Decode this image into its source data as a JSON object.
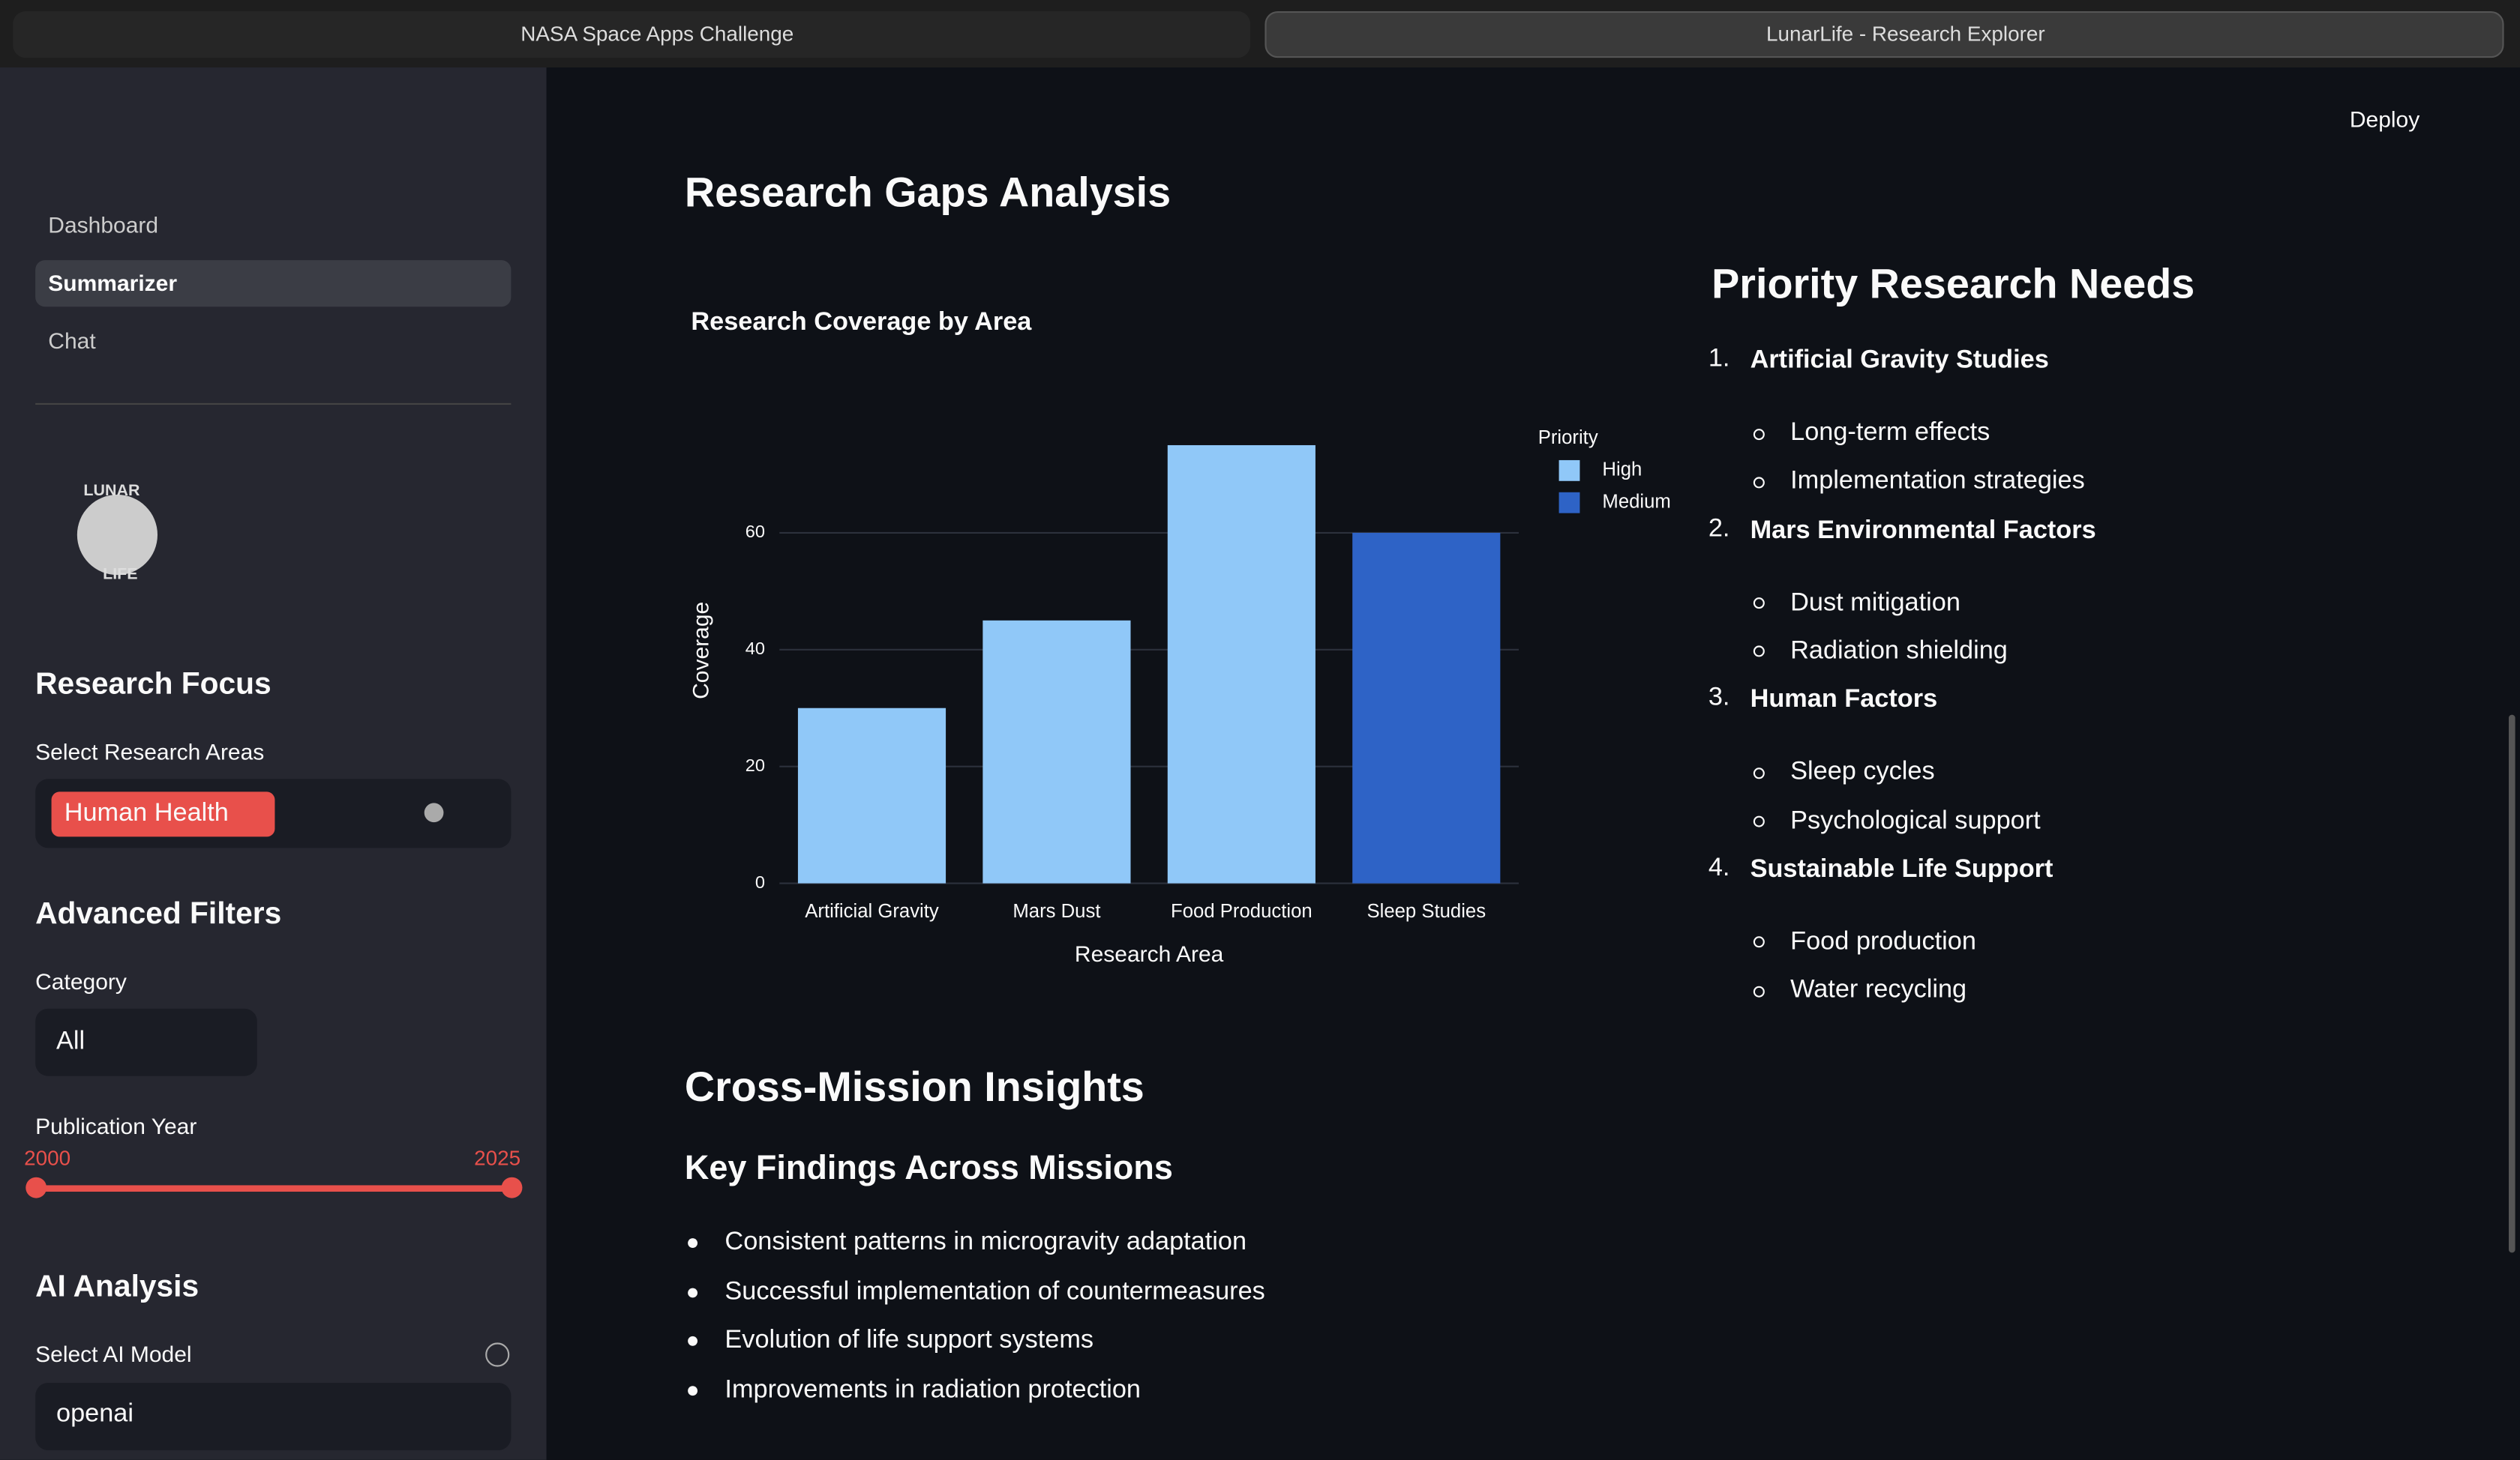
{
  "tabs": [
    "NASA Space Apps Challenge",
    "LunarLife - Research Explorer"
  ],
  "sidebar": {
    "nav": [
      "Dashboard",
      "Summarizer",
      "Chat"
    ],
    "logo": [
      "LUNAR",
      "LIFE"
    ],
    "research_focus": {
      "heading": "Research Focus",
      "label": "Select Research Areas",
      "selected": [
        "Human Health"
      ]
    },
    "advanced_filters": {
      "heading": "Advanced Filters",
      "category_label": "Category",
      "category_value": "All",
      "year_label": "Publication Year",
      "year_range": [
        2000,
        2025
      ]
    },
    "ai_analysis": {
      "heading": "AI Analysis",
      "model_label": "Select AI Model",
      "model_value": "openai"
    }
  },
  "header": {
    "deploy": "Deploy"
  },
  "main": {
    "title": "Research Gaps Analysis",
    "priority": {
      "heading": "Priority Research Needs",
      "items": [
        {
          "title": "Artificial Gravity Studies",
          "points": [
            "Long-term effects",
            "Implementation strategies"
          ]
        },
        {
          "title": "Mars Environmental Factors",
          "points": [
            "Dust mitigation",
            "Radiation shielding"
          ]
        },
        {
          "title": "Human Factors",
          "points": [
            "Sleep cycles",
            "Psychological support"
          ]
        },
        {
          "title": "Sustainable Life Support",
          "points": [
            "Food production",
            "Water recycling"
          ]
        }
      ]
    },
    "cross_mission": {
      "heading": "Cross-Mission Insights",
      "subheading": "Key Findings Across Missions",
      "bullets": [
        "Consistent patterns in microgravity adaptation",
        "Successful implementation of countermeasures",
        "Evolution of life support systems",
        "Improvements in radiation protection"
      ]
    }
  },
  "chart_data": {
    "type": "bar",
    "title": "Research Coverage by Area",
    "x_label": "Research Area",
    "y_label": "Coverage",
    "categories": [
      "Artificial Gravity",
      "Mars Dust",
      "Food Production",
      "Sleep Studies"
    ],
    "legend_title": "Priority",
    "series": [
      {
        "name": "High",
        "color": "#90c8f8",
        "values": [
          30,
          45,
          75,
          null
        ]
      },
      {
        "name": "Medium",
        "color": "#2e63c6",
        "values": [
          null,
          null,
          null,
          60
        ]
      }
    ],
    "ylim": [
      0,
      78.9
    ],
    "yticks": [
      0,
      20,
      40,
      60
    ],
    "grid": true
  }
}
